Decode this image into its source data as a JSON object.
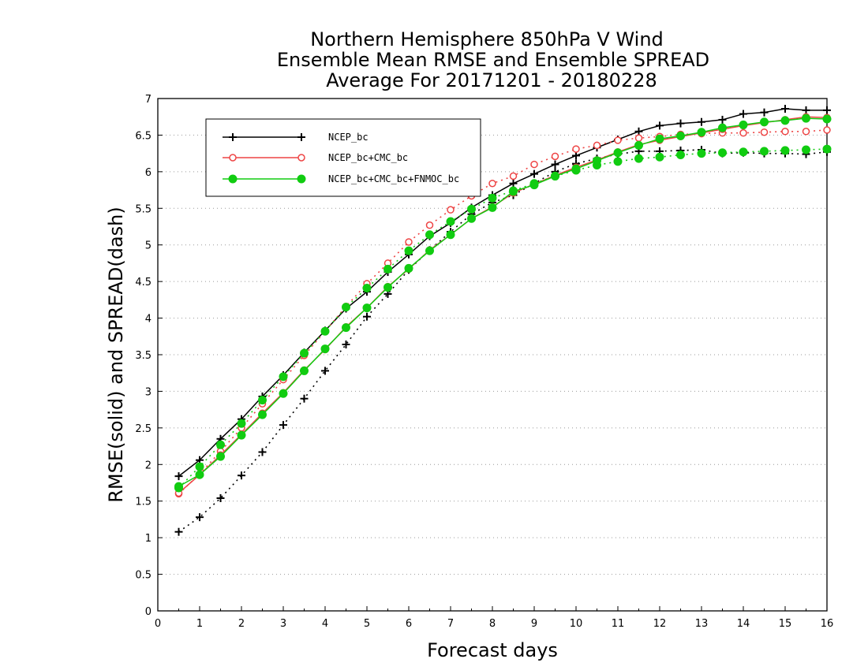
{
  "chart_data": {
    "type": "line",
    "title": [
      "Northern Hemisphere 850hPa V Wind",
      "Ensemble Mean RMSE and Ensemble SPREAD",
      "Average For 20171201 - 20180228"
    ],
    "xlabel": "Forecast days",
    "ylabel": "RMSE(solid) and SPREAD(dash)",
    "xlim": [
      0,
      16
    ],
    "ylim": [
      0,
      7
    ],
    "xticks": [
      "0",
      "1",
      "2",
      "3",
      "4",
      "5",
      "6",
      "7",
      "8",
      "9",
      "10",
      "11",
      "12",
      "13",
      "14",
      "15",
      "16"
    ],
    "yticks": [
      "0",
      "0.5",
      "1",
      "1.5",
      "2",
      "2.5",
      "3",
      "3.5",
      "4",
      "4.5",
      "5",
      "5.5",
      "6",
      "6.5",
      "7"
    ],
    "grid": true,
    "legend_position": "top-left",
    "x": [
      0.5,
      1,
      1.5,
      2,
      2.5,
      3,
      3.5,
      4,
      4.5,
      5,
      5.5,
      6,
      6.5,
      7,
      7.5,
      8,
      8.5,
      9,
      9.5,
      10,
      10.5,
      11,
      11.5,
      12,
      12.5,
      13,
      13.5,
      14,
      14.5,
      15,
      15.5,
      16
    ],
    "series": [
      {
        "name": "NCEP_bc",
        "color": "#000000",
        "marker": "plus",
        "rmse": [
          1.84,
          2.06,
          2.35,
          2.62,
          2.93,
          3.22,
          3.53,
          3.83,
          4.13,
          4.36,
          4.63,
          4.87,
          5.12,
          5.3,
          5.51,
          5.68,
          5.84,
          5.97,
          6.1,
          6.22,
          6.33,
          6.44,
          6.55,
          6.63,
          6.66,
          6.68,
          6.71,
          6.79,
          6.81,
          6.86,
          6.84,
          6.84
        ],
        "spread": [
          1.08,
          1.28,
          1.54,
          1.85,
          2.17,
          2.54,
          2.9,
          3.28,
          3.64,
          4.02,
          4.33,
          4.66,
          4.93,
          5.18,
          5.42,
          5.58,
          5.68,
          5.84,
          6.0,
          6.11,
          6.18,
          6.24,
          6.28,
          6.28,
          6.29,
          6.3,
          6.25,
          6.26,
          6.25,
          6.25,
          6.24,
          6.27
        ]
      },
      {
        "name": "NCEP_bc+CMC_bc",
        "color": "#ee4444",
        "marker": "circle",
        "rmse": [
          1.61,
          1.86,
          2.13,
          2.41,
          2.7,
          2.98,
          3.29,
          3.57,
          3.88,
          4.14,
          4.43,
          4.67,
          4.93,
          5.14,
          5.36,
          5.52,
          5.71,
          5.83,
          5.95,
          6.06,
          6.16,
          6.27,
          6.37,
          6.43,
          6.48,
          6.53,
          6.58,
          6.63,
          6.67,
          6.71,
          6.75,
          6.74
        ],
        "spread": [
          1.6,
          1.87,
          2.18,
          2.5,
          2.83,
          3.16,
          3.49,
          3.82,
          4.16,
          4.47,
          4.75,
          5.04,
          5.27,
          5.48,
          5.67,
          5.84,
          5.94,
          6.1,
          6.21,
          6.31,
          6.36,
          6.43,
          6.46,
          6.48,
          6.51,
          6.52,
          6.53,
          6.53,
          6.54,
          6.55,
          6.55,
          6.57
        ]
      },
      {
        "name": "NCEP_bc+CMC_bc+FNMOC_bc",
        "color": "#11cc11",
        "marker": "dot",
        "rmse": [
          1.7,
          1.86,
          2.11,
          2.4,
          2.68,
          2.97,
          3.28,
          3.58,
          3.87,
          4.14,
          4.42,
          4.68,
          4.92,
          5.14,
          5.36,
          5.51,
          5.73,
          5.82,
          5.94,
          6.04,
          6.15,
          6.26,
          6.36,
          6.45,
          6.49,
          6.54,
          6.6,
          6.64,
          6.68,
          6.7,
          6.73,
          6.72
        ],
        "spread": [
          1.68,
          1.97,
          2.27,
          2.56,
          2.88,
          3.2,
          3.52,
          3.82,
          4.15,
          4.41,
          4.67,
          4.92,
          5.14,
          5.32,
          5.49,
          5.64,
          5.74,
          5.84,
          5.94,
          6.02,
          6.09,
          6.14,
          6.18,
          6.2,
          6.23,
          6.25,
          6.26,
          6.27,
          6.28,
          6.29,
          6.3,
          6.31
        ]
      }
    ]
  }
}
